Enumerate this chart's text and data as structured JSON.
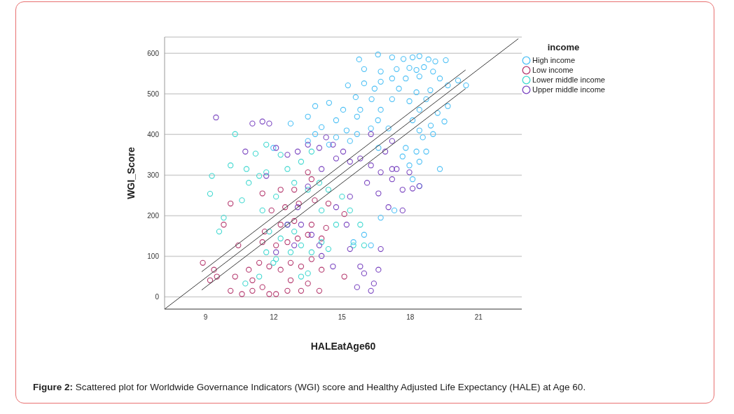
{
  "chart_data": {
    "type": "scatter",
    "xlabel": "HALEatAge60",
    "ylabel": "WGI_Score",
    "legend_title": "income",
    "legend": "right",
    "grid": "y",
    "marker": "circle",
    "xlim": [
      7.2,
      22.9
    ],
    "ylim": [
      -30,
      640
    ],
    "xticks": [
      9,
      12,
      15,
      18,
      21
    ],
    "yticks": [
      0,
      100,
      200,
      300,
      400,
      500,
      600
    ],
    "annotations": [
      "Figure 2: Scattered plot for Worldwide Governance Indicators (WGI) score and Healthy Adjusted Life Expectancy (HALE) at Age 60."
    ],
    "series": [
      {
        "name": "High income",
        "color": "#4dc0f5",
        "x": [
          15.75,
          16.58,
          17.2,
          17.7,
          18.1,
          18.4,
          18.8,
          19.1,
          19.56,
          15.97,
          16.7,
          17.4,
          17.96,
          18.27,
          18.6,
          19.0,
          17.2,
          17.8,
          18.4,
          19.3,
          15.97,
          16.7,
          15.26,
          16.43,
          17.5,
          18.27,
          18.88,
          19.65,
          20.1,
          20.45,
          15.6,
          16.3,
          17.2,
          17.96,
          18.7,
          19.65,
          14.43,
          15.05,
          15.8,
          16.7,
          18.4,
          19.2,
          14.74,
          15.66,
          16.58,
          18.1,
          18.9,
          19.5,
          14.1,
          15.2,
          16.27,
          17.04,
          18.4,
          13.82,
          14.74,
          15.66,
          18.55,
          19.0,
          13.5,
          14.43,
          15.35,
          16.6,
          17.8,
          18.27,
          18.7,
          17.66,
          18.4,
          17.96,
          19.3,
          18.1,
          18.4,
          17.3,
          16.7,
          15.97,
          15.5,
          16.27,
          11.98,
          12.74,
          13.5,
          13.82
        ],
        "values": [
          585,
          597,
          590,
          586,
          590,
          593,
          585,
          580,
          583,
          561,
          555,
          561,
          564,
          559,
          566,
          555,
          538,
          538,
          543,
          538,
          526,
          530,
          521,
          513,
          513,
          504,
          509,
          521,
          533,
          521,
          492,
          487,
          487,
          482,
          487,
          470,
          478,
          461,
          461,
          461,
          461,
          453,
          435,
          444,
          435,
          435,
          422,
          432,
          418,
          410,
          415,
          415,
          410,
          401,
          393,
          401,
          393,
          401,
          384,
          375,
          384,
          367,
          367,
          358,
          358,
          346,
          333,
          324,
          315,
          290,
          273,
          213,
          195,
          153,
          135,
          127,
          367,
          427,
          444,
          470
        ]
      },
      {
        "name": "Low income",
        "color": "#b5396e",
        "x": [
          8.88,
          9.37,
          9.2,
          10.1,
          10.6,
          11.06,
          11.5,
          12.1,
          12.6,
          13.2,
          13.5,
          14.0,
          10.44,
          10.3,
          10.9,
          11.36,
          11.8,
          12.3,
          12.74,
          13.2,
          13.66,
          14.1,
          11.5,
          12.1,
          12.6,
          13.05,
          13.5,
          14.1,
          11.6,
          12.3,
          12.9,
          13.66,
          14.3,
          11.9,
          12.5,
          13.1,
          13.8,
          14.4,
          11.5,
          12.3,
          12.9,
          13.5,
          13.66,
          9.8,
          10.1,
          9.5,
          15.1,
          15.1,
          11.8,
          11.06,
          12.74
        ],
        "values": [
          84,
          67,
          41,
          15,
          7,
          15,
          24,
          7,
          15,
          15,
          33,
          15,
          127,
          50,
          67,
          84,
          75,
          67,
          84,
          75,
          93,
          67,
          135,
          127,
          135,
          144,
          153,
          144,
          161,
          178,
          187,
          178,
          170,
          213,
          221,
          230,
          238,
          230,
          255,
          264,
          264,
          307,
          290,
          178,
          230,
          50,
          50,
          204,
          7,
          41,
          41
        ]
      },
      {
        "name": "Lower middle income",
        "color": "#40d8d0",
        "x": [
          9.28,
          9.2,
          9.6,
          9.8,
          10.3,
          10.1,
          10.6,
          10.8,
          11.2,
          11.36,
          11.67,
          11.5,
          11.8,
          12.3,
          12.6,
          12.9,
          13.2,
          13.66,
          14.1,
          14.4,
          11.67,
          12.1,
          12.74,
          13.5,
          11.36,
          10.75,
          10.9,
          12.1,
          12.9,
          13.5,
          14.0,
          14.4,
          15.0,
          15.35,
          15.8,
          15.97,
          15.5,
          12.6,
          13.2,
          13.66,
          12.3,
          11.67,
          14.1,
          14.74,
          11.98,
          13.2
        ],
        "values": [
          298,
          254,
          161,
          195,
          401,
          324,
          238,
          315,
          353,
          298,
          307,
          213,
          161,
          144,
          178,
          161,
          127,
          110,
          135,
          118,
          110,
          93,
          110,
          58,
          50,
          33,
          281,
          247,
          281,
          264,
          281,
          264,
          247,
          213,
          178,
          127,
          127,
          315,
          333,
          358,
          350,
          375,
          213,
          178,
          84,
          50
        ]
      },
      {
        "name": "Upper middle income",
        "color": "#7a45c0",
        "x": [
          9.46,
          10.75,
          11.06,
          11.5,
          11.8,
          11.67,
          12.1,
          12.6,
          13.05,
          13.5,
          14.0,
          14.3,
          14.6,
          14.74,
          15.05,
          15.35,
          15.8,
          16.27,
          16.7,
          17.2,
          17.66,
          18.1,
          18.4,
          17.2,
          16.1,
          16.6,
          17.04,
          15.35,
          14.74,
          14.1,
          13.5,
          13.05,
          12.6,
          13.2,
          13.66,
          14.1,
          14.6,
          15.8,
          15.97,
          16.6,
          16.4,
          15.66,
          16.27,
          17.4,
          15.2,
          15.35,
          14.0,
          12.1,
          12.9,
          16.7,
          17.66,
          17.96,
          17.2,
          16.9,
          16.27
        ],
        "values": [
          442,
          358,
          427,
          432,
          427,
          298,
          367,
          350,
          358,
          375,
          367,
          393,
          375,
          341,
          358,
          333,
          341,
          324,
          307,
          290,
          264,
          267,
          273,
          315,
          281,
          255,
          221,
          247,
          221,
          315,
          272,
          221,
          178,
          178,
          153,
          101,
          75,
          75,
          58,
          67,
          33,
          24,
          15,
          315,
          178,
          118,
          127,
          110,
          127,
          118,
          213,
          307,
          384,
          358,
          401
        ]
      },
      {
        "type": "line",
        "color": "#3a3a3a",
        "line_style": "solid",
        "marker": "none",
        "x": [
          7.2,
          22.75
        ],
        "values": [
          -30,
          636
        ]
      },
      {
        "type": "line",
        "color": "#3a3a3a",
        "line_style": "solid",
        "marker": "none",
        "x": [
          8.83,
          20.43
        ],
        "values": [
          62,
          559
        ]
      },
      {
        "type": "line",
        "color": "#3a3a3a",
        "line_style": "solid",
        "marker": "none",
        "x": [
          8.83,
          20.43
        ],
        "values": [
          17,
          513
        ]
      }
    ]
  }
}
